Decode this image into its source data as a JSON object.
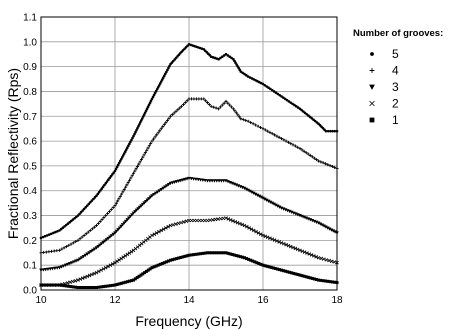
{
  "chart_data": {
    "type": "scatter",
    "xlabel": "Frequency (GHz)",
    "ylabel": "Fractional Reflectivity (Rps)",
    "xlim": [
      10,
      18
    ],
    "ylim": [
      0,
      1.1
    ],
    "x_ticks": [
      "10",
      "12",
      "14",
      "16",
      "18"
    ],
    "y_ticks": [
      "0.0",
      "0.1",
      "0.2",
      "0.3",
      "0.4",
      "0.5",
      "0.6",
      "0.7",
      "0.8",
      "0.9",
      "1.0",
      "1.1"
    ],
    "grid": true,
    "legend": {
      "title": "Number of grooves:",
      "placement": "right"
    },
    "series": [
      {
        "name": "5",
        "marker": "dot",
        "x": [
          10.0,
          10.5,
          11.0,
          11.5,
          12.0,
          12.5,
          13.0,
          13.5,
          13.8,
          14.0,
          14.2,
          14.4,
          14.6,
          14.8,
          15.0,
          15.2,
          15.4,
          15.6,
          16.0,
          16.5,
          17.0,
          17.5,
          17.7,
          18.0
        ],
        "y": [
          0.21,
          0.24,
          0.3,
          0.38,
          0.48,
          0.62,
          0.77,
          0.91,
          0.96,
          0.99,
          0.98,
          0.97,
          0.94,
          0.93,
          0.95,
          0.93,
          0.88,
          0.86,
          0.83,
          0.78,
          0.73,
          0.67,
          0.64,
          0.64
        ]
      },
      {
        "name": "4",
        "marker": "plus",
        "x": [
          10.0,
          10.5,
          11.0,
          11.5,
          12.0,
          12.5,
          13.0,
          13.5,
          13.8,
          14.0,
          14.2,
          14.4,
          14.6,
          14.8,
          15.0,
          15.2,
          15.4,
          15.6,
          16.0,
          16.5,
          17.0,
          17.5,
          18.0
        ],
        "y": [
          0.15,
          0.16,
          0.2,
          0.26,
          0.34,
          0.47,
          0.6,
          0.7,
          0.74,
          0.77,
          0.77,
          0.77,
          0.74,
          0.73,
          0.76,
          0.73,
          0.69,
          0.68,
          0.65,
          0.61,
          0.57,
          0.52,
          0.49
        ]
      },
      {
        "name": "3",
        "marker": "triangle",
        "x": [
          10.0,
          10.5,
          11.0,
          11.5,
          12.0,
          12.5,
          13.0,
          13.5,
          14.0,
          14.5,
          15.0,
          15.5,
          16.0,
          16.5,
          17.0,
          17.5,
          18.0
        ],
        "y": [
          0.08,
          0.09,
          0.12,
          0.17,
          0.23,
          0.31,
          0.38,
          0.43,
          0.45,
          0.44,
          0.44,
          0.41,
          0.37,
          0.33,
          0.3,
          0.27,
          0.23
        ]
      },
      {
        "name": "2",
        "marker": "cross",
        "x": [
          10.0,
          10.5,
          11.0,
          11.5,
          12.0,
          12.5,
          13.0,
          13.5,
          14.0,
          14.5,
          15.0,
          15.5,
          16.0,
          16.5,
          17.0,
          17.5,
          18.0
        ],
        "y": [
          0.02,
          0.02,
          0.04,
          0.07,
          0.11,
          0.16,
          0.22,
          0.26,
          0.28,
          0.28,
          0.29,
          0.26,
          0.22,
          0.19,
          0.16,
          0.13,
          0.11
        ]
      },
      {
        "name": "1",
        "marker": "square",
        "x": [
          10.0,
          10.5,
          11.0,
          11.5,
          12.0,
          12.5,
          13.0,
          13.5,
          14.0,
          14.5,
          15.0,
          15.5,
          16.0,
          16.5,
          17.0,
          17.5,
          18.0
        ],
        "y": [
          0.02,
          0.02,
          0.01,
          0.01,
          0.02,
          0.04,
          0.09,
          0.12,
          0.14,
          0.15,
          0.15,
          0.13,
          0.1,
          0.08,
          0.06,
          0.04,
          0.03
        ]
      }
    ]
  }
}
